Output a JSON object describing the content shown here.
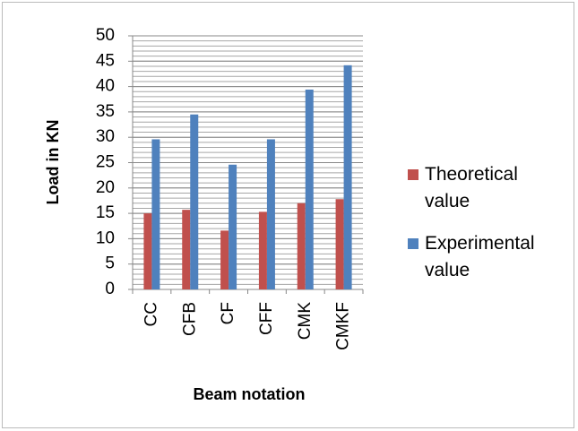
{
  "chart_data": {
    "type": "bar",
    "x_label": "Beam notation",
    "y_label": "Load in KN",
    "categories": [
      "CC",
      "CFB",
      "CF",
      "CFF",
      "CMK",
      "CMKF"
    ],
    "series": [
      {
        "name": "Theoretical value",
        "color": "#c0504d",
        "values": [
          15,
          15.7,
          11.6,
          15.3,
          17,
          17.8
        ]
      },
      {
        "name": "Experimental value",
        "color": "#4f81bd",
        "values": [
          29.6,
          34.5,
          24.6,
          29.6,
          39.4,
          44.2
        ]
      }
    ],
    "ylim": [
      0,
      50
    ],
    "yticks": [
      0,
      5,
      10,
      15,
      20,
      25,
      30,
      35,
      40,
      45,
      50
    ],
    "grid": true,
    "minor_grid": 1,
    "legend": "right"
  }
}
